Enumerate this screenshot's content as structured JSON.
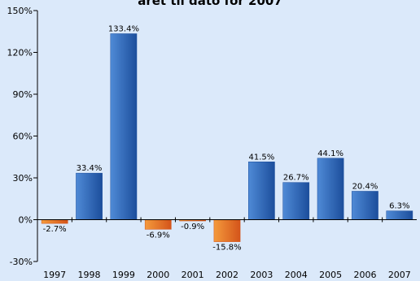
{
  "chart_data": {
    "type": "bar",
    "title": "aret til dato for 2007",
    "categories": [
      "1997",
      "1998",
      "1999",
      "2000",
      "2001",
      "2002",
      "2003",
      "2004",
      "2005",
      "2006",
      "2007"
    ],
    "values": [
      -2.7,
      33.4,
      133.4,
      -6.9,
      -0.9,
      -15.8,
      41.5,
      26.7,
      44.1,
      20.4,
      6.3
    ],
    "data_labels": [
      "-2.7%",
      "33.4%",
      "133.4%",
      "-6.9%",
      "-0.9%",
      "-15.8%",
      "41.5%",
      "26.7%",
      "44.1%",
      "20.4%",
      "6.3%"
    ],
    "ylim": [
      -30,
      150
    ],
    "yticks": [
      -30,
      0,
      30,
      60,
      90,
      120,
      150
    ],
    "ytick_labels": [
      "-30%",
      "0%",
      "30%",
      "60%",
      "90%",
      "120%",
      "150%"
    ],
    "grid": false,
    "legend": "none",
    "colors": {
      "positive_light": "#4f8ad6",
      "positive_dark": "#1c4e9c",
      "negative_light": "#f49a3c",
      "negative_dark": "#d4541a",
      "axis": "#000000",
      "background": "#dbe9fa"
    }
  }
}
